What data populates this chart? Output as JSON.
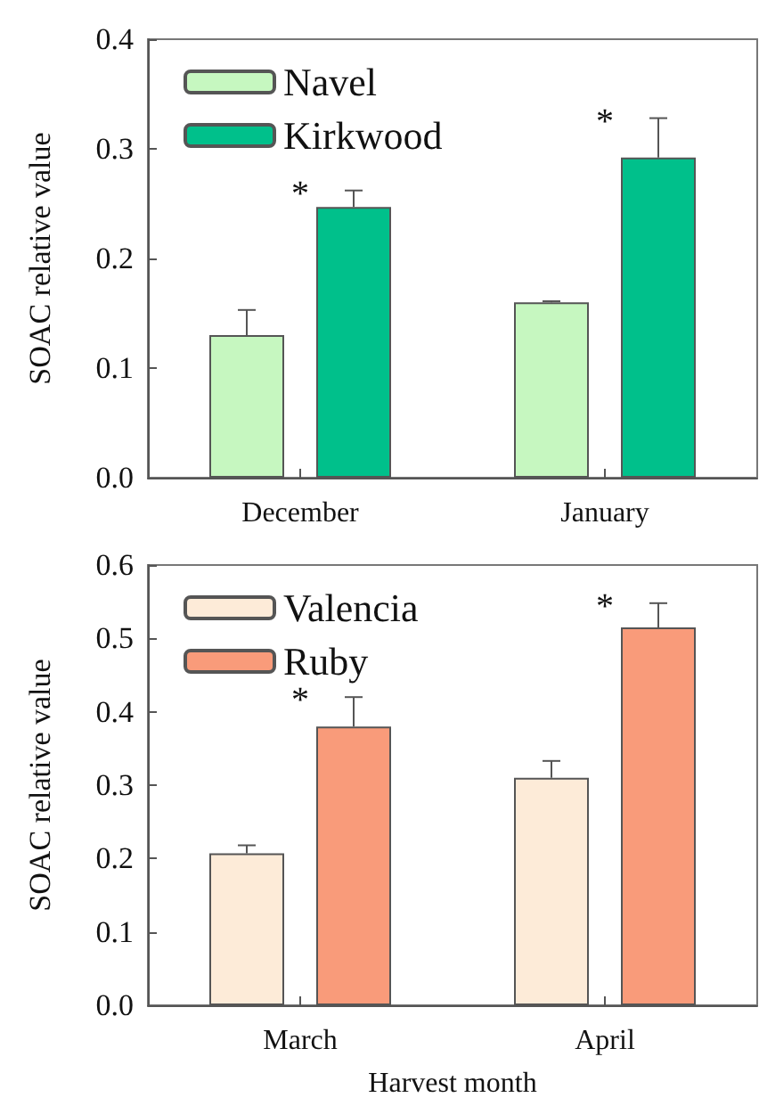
{
  "chart_data": [
    {
      "type": "bar",
      "ylabel": "SOAC relative value",
      "categories": [
        "December",
        "January"
      ],
      "series": [
        {
          "name": "Navel",
          "color": "#c6f7c0",
          "values": [
            0.13,
            0.16
          ],
          "errors": [
            [
              0.13,
              0.153
            ],
            [
              0.16,
              0.161
            ]
          ]
        },
        {
          "name": "Kirkwood",
          "color": "#00c08b",
          "values": [
            0.247,
            0.292
          ],
          "errors": [
            [
              0.247,
              0.262
            ],
            [
              0.292,
              0.328
            ]
          ]
        }
      ],
      "ylim": [
        0,
        0.4
      ],
      "yticks": [
        {
          "value": 0,
          "label": "0.0"
        },
        0.1,
        0.2,
        0.3,
        0.4
      ],
      "grid": false,
      "legend": "top left",
      "annotations": [
        "*",
        "*"
      ]
    },
    {
      "type": "bar",
      "xlabel": "Harvest month",
      "ylabel": "SOAC relative value",
      "categories": [
        "March",
        "April"
      ],
      "series": [
        {
          "name": "Valencia",
          "color": "#fdebd8",
          "values": [
            0.207,
            0.31
          ],
          "errors": [
            [
              0.207,
              0.218
            ],
            [
              0.31,
              0.333
            ]
          ]
        },
        {
          "name": "Ruby",
          "color": "#f99b7a",
          "values": [
            0.38,
            0.515
          ],
          "errors": [
            [
              0.38,
              0.42
            ],
            [
              0.515,
              0.548
            ]
          ]
        }
      ],
      "ylim": [
        0,
        0.6
      ],
      "yticks": [
        {
          "value": 0,
          "label": "0.0"
        },
        0.1,
        0.2,
        0.3,
        0.4,
        0.5,
        0.6
      ],
      "grid": false,
      "legend": "top left",
      "annotations": [
        "*",
        "*"
      ]
    }
  ]
}
